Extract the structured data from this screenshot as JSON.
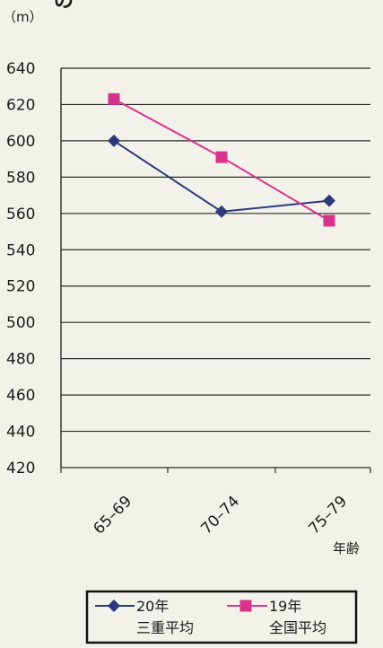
{
  "chart_data": {
    "type": "line",
    "title": "の",
    "unit_label": "（m）",
    "xlabel": "年齢",
    "categories": [
      "65–69",
      "70–74",
      "75–79"
    ],
    "ylim": [
      420,
      640
    ],
    "yticks": [
      420,
      440,
      460,
      480,
      500,
      520,
      540,
      560,
      580,
      600,
      620,
      640
    ],
    "grid": true,
    "legend_position": "bottom",
    "series": [
      {
        "name_line1": "20年",
        "name_line2": "三重平均",
        "marker": "diamond",
        "color": "#2b3a7a",
        "values": [
          600,
          561,
          567
        ]
      },
      {
        "name_line1": "19年",
        "name_line2": "全国平均",
        "marker": "square",
        "color": "#d8338a",
        "values": [
          623,
          591,
          556
        ]
      }
    ]
  }
}
